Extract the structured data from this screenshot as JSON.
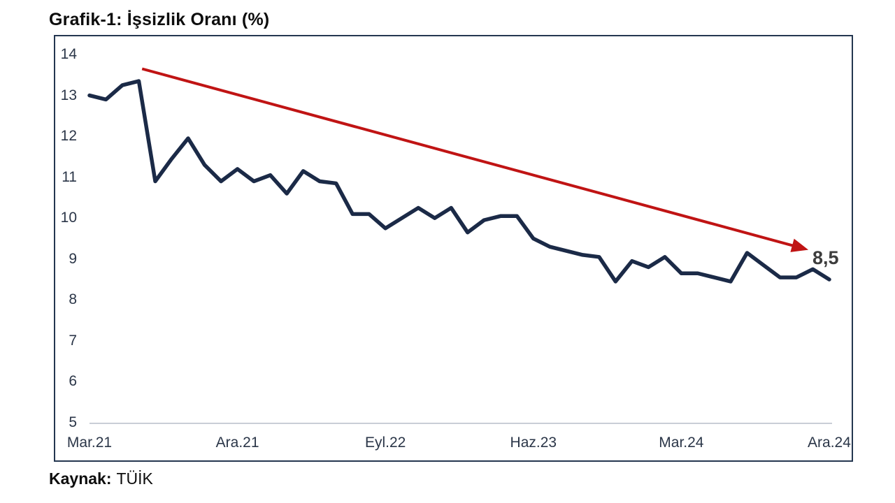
{
  "title": "Grafik-1: İşsizlik Oranı (%)",
  "source": {
    "label": "Kaynak:",
    "value": "TÜİK"
  },
  "colors": {
    "series": "#1b2a47",
    "trend_arrow": "#c01414",
    "frame_border": "#243650",
    "axis_text": "#2b3648",
    "baseline": "#c9ced6",
    "end_label": "#3d3d3d",
    "title_text": "#0d0d0d"
  },
  "chart_data": {
    "type": "line",
    "title": "Grafik-1: İşsizlik Oranı (%)",
    "xlabel": "",
    "ylabel": "",
    "ylim": [
      5,
      14
    ],
    "y_ticks": [
      14,
      13,
      12,
      11,
      10,
      9,
      8,
      7,
      6,
      5
    ],
    "x_tick_labels": [
      "Mar.21",
      "Ara.21",
      "Eyl.22",
      "Haz.23",
      "Mar.24",
      "Ara.24"
    ],
    "x_tick_indices": [
      0,
      9,
      18,
      27,
      36,
      45
    ],
    "grid": false,
    "legend": false,
    "values": [
      13.0,
      12.9,
      13.25,
      13.35,
      10.9,
      11.45,
      11.95,
      11.3,
      10.9,
      11.2,
      10.9,
      11.05,
      10.6,
      11.15,
      10.9,
      10.85,
      10.1,
      10.1,
      9.75,
      10.0,
      10.25,
      10.0,
      10.25,
      9.65,
      9.95,
      10.05,
      10.05,
      9.5,
      9.3,
      9.2,
      9.1,
      9.05,
      8.45,
      8.95,
      8.8,
      9.05,
      8.65,
      8.65,
      8.55,
      8.45,
      9.15,
      8.85,
      8.55,
      8.55,
      8.75,
      8.5
    ],
    "end_label": "8,5",
    "trend_arrow": {
      "from": {
        "x_index": 3.2,
        "value": 13.65
      },
      "to": {
        "x_index": 43.5,
        "value": 9.25
      }
    }
  }
}
